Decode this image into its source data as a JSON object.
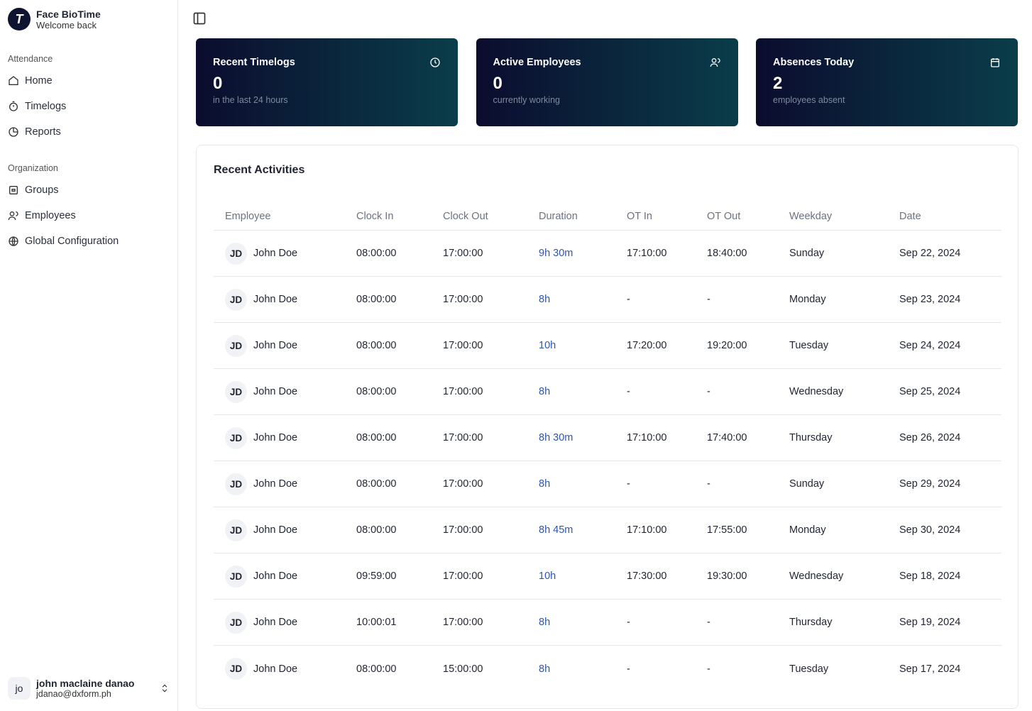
{
  "sidebar": {
    "brand": {
      "title": "Face BioTime",
      "subtitle": "Welcome back"
    },
    "sections": [
      {
        "label": "Attendance",
        "items": [
          "Home",
          "Timelogs",
          "Reports"
        ]
      },
      {
        "label": "Organization",
        "items": [
          "Groups",
          "Employees",
          "Global Configuration"
        ]
      }
    ],
    "user": {
      "avatar": "jo",
      "name": "john maclaine danao",
      "email": "jdanao@dxform.ph"
    }
  },
  "stats": [
    {
      "title": "Recent Timelogs",
      "value": 0,
      "note": "in the last 24 hours"
    },
    {
      "title": "Active Employees",
      "value": 0,
      "note": "currently working"
    },
    {
      "title": "Absences Today",
      "value": 2,
      "note": "employees absent"
    }
  ],
  "activities": {
    "title": "Recent Activities",
    "columns": [
      "Employee",
      "Clock In",
      "Clock Out",
      "Duration",
      "OT In",
      "OT Out",
      "Weekday",
      "Date"
    ],
    "rows": [
      {
        "initials": "JD",
        "name": "John Doe",
        "values": [
          "08:00:00",
          "17:00:00",
          "9h 30m",
          "17:10:00",
          "18:40:00",
          "Sunday",
          "Sep 22, 2024"
        ]
      },
      {
        "initials": "JD",
        "name": "John Doe",
        "values": [
          "08:00:00",
          "17:00:00",
          "8h",
          "-",
          "-",
          "Monday",
          "Sep 23, 2024"
        ]
      },
      {
        "initials": "JD",
        "name": "John Doe",
        "values": [
          "08:00:00",
          "17:00:00",
          "10h",
          "17:20:00",
          "19:20:00",
          "Tuesday",
          "Sep 24, 2024"
        ]
      },
      {
        "initials": "JD",
        "name": "John Doe",
        "values": [
          "08:00:00",
          "17:00:00",
          "8h",
          "-",
          "-",
          "Wednesday",
          "Sep 25, 2024"
        ]
      },
      {
        "initials": "JD",
        "name": "John Doe",
        "values": [
          "08:00:00",
          "17:00:00",
          "8h 30m",
          "17:10:00",
          "17:40:00",
          "Thursday",
          "Sep 26, 2024"
        ]
      },
      {
        "initials": "JD",
        "name": "John Doe",
        "values": [
          "08:00:00",
          "17:00:00",
          "8h",
          "-",
          "-",
          "Sunday",
          "Sep 29, 2024"
        ]
      },
      {
        "initials": "JD",
        "name": "John Doe",
        "values": [
          "08:00:00",
          "17:00:00",
          "8h 45m",
          "17:10:00",
          "17:55:00",
          "Monday",
          "Sep 30, 2024"
        ]
      },
      {
        "initials": "JD",
        "name": "John Doe",
        "values": [
          "09:59:00",
          "17:00:00",
          "10h",
          "17:30:00",
          "19:30:00",
          "Wednesday",
          "Sep 18, 2024"
        ]
      },
      {
        "initials": "JD",
        "name": "John Doe",
        "values": [
          "10:00:01",
          "17:00:00",
          "8h",
          "-",
          "-",
          "Thursday",
          "Sep 19, 2024"
        ]
      },
      {
        "initials": "JD",
        "name": "John Doe",
        "values": [
          "08:00:00",
          "15:00:00",
          "8h",
          "-",
          "-",
          "Tuesday",
          "Sep 17, 2024"
        ]
      }
    ]
  }
}
